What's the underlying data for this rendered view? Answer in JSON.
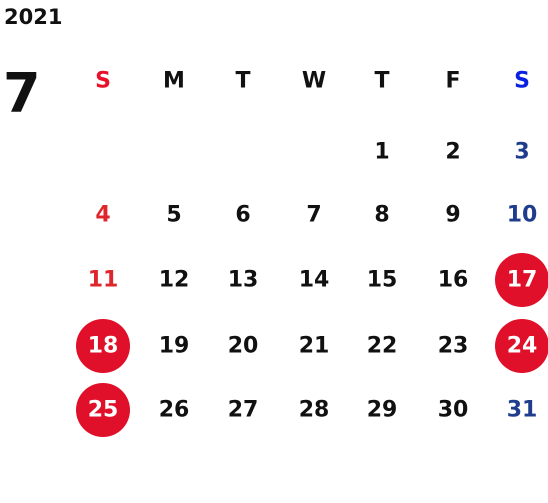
{
  "year": "2021",
  "month": "7",
  "weekdays": [
    "S",
    "M",
    "T",
    "W",
    "T",
    "F",
    "S"
  ],
  "weeks": [
    [
      null,
      null,
      null,
      null,
      {
        "day": "1"
      },
      {
        "day": "2"
      },
      {
        "day": "3"
      }
    ],
    [
      {
        "day": "4"
      },
      {
        "day": "5"
      },
      {
        "day": "6"
      },
      {
        "day": "7"
      },
      {
        "day": "8"
      },
      {
        "day": "9"
      },
      {
        "day": "10"
      }
    ],
    [
      {
        "day": "11"
      },
      {
        "day": "12"
      },
      {
        "day": "13"
      },
      {
        "day": "14"
      },
      {
        "day": "15"
      },
      {
        "day": "16"
      },
      {
        "day": "17",
        "holiday": true
      }
    ],
    [
      {
        "day": "18",
        "holiday": true
      },
      {
        "day": "19"
      },
      {
        "day": "20"
      },
      {
        "day": "21"
      },
      {
        "day": "22"
      },
      {
        "day": "23"
      },
      {
        "day": "24",
        "holiday": true
      }
    ],
    [
      {
        "day": "25",
        "holiday": true
      },
      {
        "day": "26"
      },
      {
        "day": "27"
      },
      {
        "day": "28"
      },
      {
        "day": "29"
      },
      {
        "day": "30"
      },
      {
        "day": "31"
      }
    ]
  ]
}
